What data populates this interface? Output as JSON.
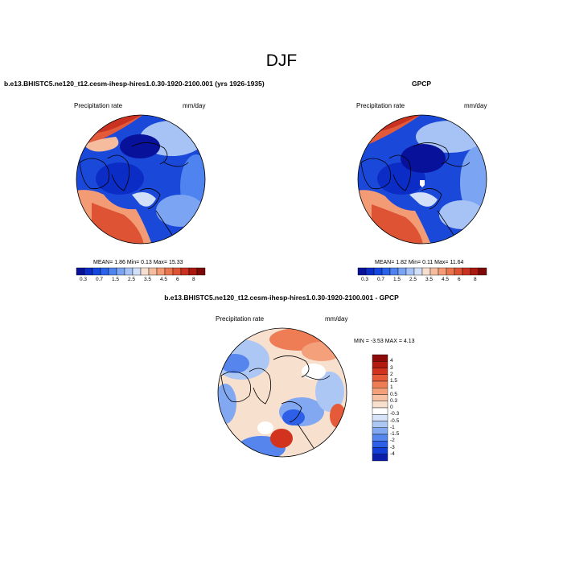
{
  "figure": {
    "title": "DJF"
  },
  "panels": [
    {
      "id": "model",
      "title": "b.e13.BHISTC5.ne120_t12.cesm-ihesp-hires1.0.30-1920-2100.001 (yrs 1926-1935)",
      "left_label": "Precipitation rate",
      "right_label": "mm/day",
      "stats": "MEAN=   1.86  Min=   0.13  Max=  15.33"
    },
    {
      "id": "obs",
      "title": "GPCP",
      "left_label": "Precipitation rate",
      "right_label": "mm/day",
      "stats": "MEAN=   1.82  Min=   0.11  Max=  11.64"
    },
    {
      "id": "diff",
      "title": "b.e13.BHISTC5.ne120_t12.cesm-ihesp-hires1.0.30-1920-2100.001 - GPCP",
      "left_label": "Precipitation rate",
      "right_label": "mm/day",
      "stats": "MIN =  -3.53 MAX =   4.13"
    }
  ],
  "colorbars": {
    "abs": {
      "labels": [
        "0.3",
        "0.7",
        "1.5",
        "2.5",
        "3.5",
        "4.5",
        "6",
        "8"
      ],
      "colors": [
        "#08119a",
        "#0b2cc5",
        "#1447e0",
        "#2b62ea",
        "#4f83ef",
        "#7ba4f3",
        "#a7c3f5",
        "#d1dff8",
        "#f6dfd0",
        "#f6bc9e",
        "#f29b75",
        "#ea7650",
        "#de5334",
        "#c93220",
        "#aa1810",
        "#7d0807"
      ]
    },
    "diff": {
      "labels": [
        "4",
        "3",
        "2",
        "1.5",
        "1",
        "0.5",
        "0.3",
        "0",
        "-0.3",
        "-0.5",
        "-1",
        "-1.5",
        "-2",
        "-3",
        "-4"
      ],
      "colors": [
        "#8c0a07",
        "#b31a10",
        "#d2331f",
        "#e55a38",
        "#ee7c55",
        "#f4a07b",
        "#f7c2a4",
        "#f8e0cf",
        "#ffffff",
        "#d6e3f8",
        "#adc7f5",
        "#82a8f2",
        "#5685ed",
        "#2d60e6",
        "#123ed6",
        "#0a1eaa"
      ]
    }
  },
  "maps": {
    "ocean_blue": "#1a49da",
    "land_red": "#e25a3a",
    "neutral": "#f6dccd"
  }
}
